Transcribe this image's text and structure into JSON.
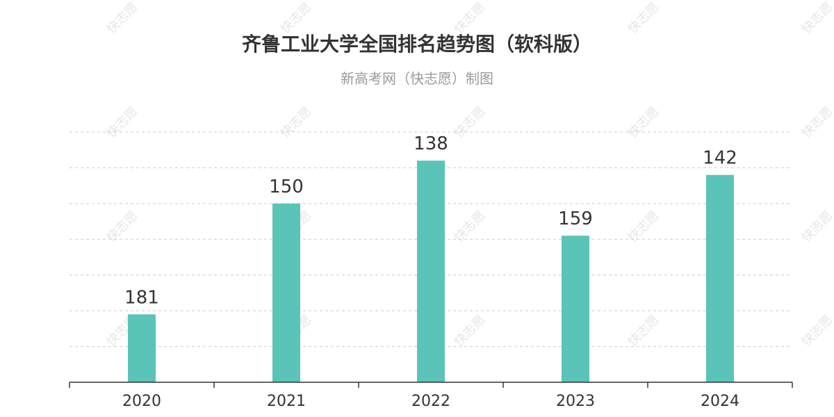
{
  "title": "齐鲁工业大学全国排名趋势图（软科版）",
  "subtitle": "新高考网（快志愿）制图",
  "watermark": "快志愿",
  "colors": {
    "bar": "#5ac4b9",
    "grid": "#cccccc",
    "axis": "#333333",
    "text": "#333333",
    "subtitle": "#9a9a9a",
    "watermark": "#e6e6e6"
  },
  "chart_data": {
    "type": "bar",
    "title": "齐鲁工业大学全国排名趋势图（软科版）",
    "subtitle": "新高考网（快志愿）制图",
    "categories": [
      "2020",
      "2021",
      "2022",
      "2023",
      "2024"
    ],
    "values": [
      181,
      150,
      138,
      159,
      142
    ],
    "y_axis_inverted": true,
    "ylim": [
      200,
      130
    ],
    "grid": true,
    "grid_style": "dashed",
    "data_labels": true,
    "legend": "none"
  }
}
